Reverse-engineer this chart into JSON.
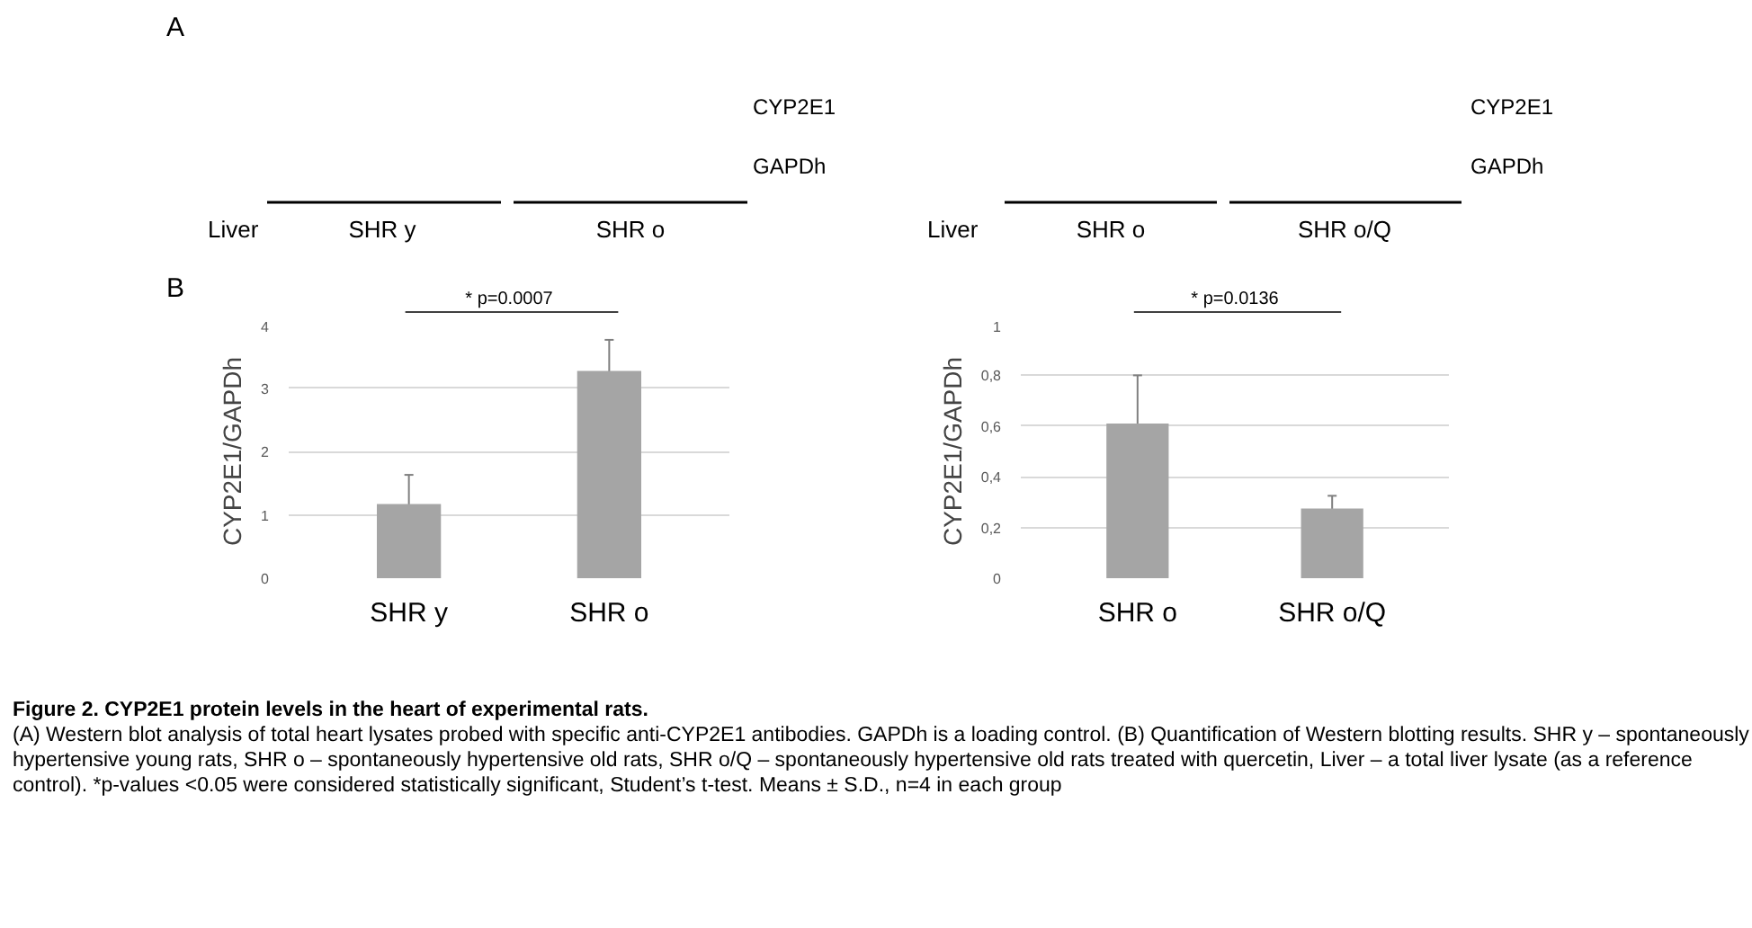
{
  "chart_data": [
    {
      "type": "bar",
      "categories": [
        "SHR y",
        "SHR o"
      ],
      "values": [
        1.17,
        3.27
      ],
      "errors": [
        0.46,
        0.49
      ],
      "color": "#a5a5a5",
      "ylabel": "CYP2E1/GAPDh",
      "ylim": [
        0,
        4
      ],
      "yticks": [
        0,
        1,
        2,
        3,
        4
      ],
      "grid": "y",
      "annotations": [
        "* p=0.0007",
        "A",
        "CYP2E1",
        "GAPDh",
        "Liver",
        "SHR y",
        "SHR o",
        "B",
        "Figure 2. CYP2E1 protein levels in the heart of experimental rats.",
        "(A) Western blot analysis of total heart lysates probed with specific anti-CYP2E1 antibodies. GAPDh is a loading control. (B) Quantification of Western blotting results. SHR y – spontaneously hypertensive young rats, SHR o – spontaneously hypertensive old rats, SHR o/Q – spontaneously hypertensive old rats treated with quercetin, Liver – a total liver lysate (as a reference control). *p-values <0.05 were considered statistically significant, Student’s t-test. Means ± S.D., n=4 in each group"
      ]
    },
    {
      "type": "bar",
      "categories": [
        "SHR o",
        "SHR o/Q"
      ],
      "values": [
        0.61,
        0.275
      ],
      "errors": [
        0.19,
        0.05
      ],
      "color": "#a5a5a5",
      "ylabel": "CYP2E1/GAPDh",
      "ylim": [
        0,
        1
      ],
      "yticks": [
        0,
        {
          "value": 0.2,
          "label": "0,2"
        },
        {
          "value": 0.4,
          "label": "0,4"
        },
        {
          "value": 0.6,
          "label": "0,6"
        },
        {
          "value": 0.8,
          "label": "0,8"
        },
        1
      ],
      "grid": "y",
      "annotations": [
        "* p=0.0136",
        "CYP2E1",
        "GAPDh",
        "Liver",
        "SHR o",
        "SHR o/Q"
      ]
    }
  ]
}
